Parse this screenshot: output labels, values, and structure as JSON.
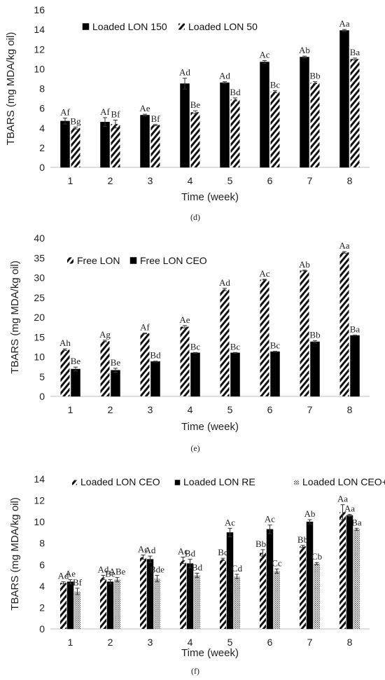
{
  "chart_data": [
    {
      "type": "bar",
      "panel_label": "(d)",
      "ylabel": "TBARS (mg MDA/kg oil)",
      "xlabel": "Time (week)",
      "ylim": [
        0,
        16
      ],
      "yticks": [
        0,
        2,
        4,
        6,
        8,
        10,
        12,
        14,
        16
      ],
      "categories": [
        "1",
        "2",
        "3",
        "4",
        "5",
        "6",
        "7",
        "8"
      ],
      "grid": false,
      "legend_position": "top-left",
      "series": [
        {
          "name": "Loaded LON 150",
          "pattern": "solid",
          "values": [
            4.7,
            4.6,
            5.3,
            8.5,
            8.6,
            10.7,
            11.2,
            13.9
          ],
          "errors": [
            0.3,
            0.45,
            0.1,
            0.55,
            0.1,
            0.15,
            0.1,
            0.1
          ],
          "labels": [
            "Af",
            "Af",
            "Ae",
            "Ad",
            "Ad",
            "Ac",
            "Ab",
            "Aa"
          ]
        },
        {
          "name": "Loaded LON 50",
          "pattern": "diagonal",
          "values": [
            4.0,
            4.4,
            4.3,
            5.6,
            6.9,
            7.7,
            8.6,
            11.0
          ],
          "errors": [
            0.1,
            0.4,
            0.05,
            0.15,
            0.15,
            0.1,
            0.1,
            0.1
          ],
          "labels": [
            "Bg",
            "Bf",
            "Bf",
            "Be",
            "Bd",
            "Bc",
            "Bb",
            "Ba"
          ]
        }
      ]
    },
    {
      "type": "bar",
      "panel_label": "(e)",
      "ylabel": "TBARS (mg MDA/kg oil)",
      "xlabel": "Time (week)",
      "ylim": [
        0,
        40
      ],
      "yticks": [
        0,
        5,
        10,
        15,
        20,
        25,
        30,
        35,
        40
      ],
      "categories": [
        "1",
        "2",
        "3",
        "4",
        "5",
        "6",
        "7",
        "8"
      ],
      "grid": false,
      "legend_position": "top-left",
      "series": [
        {
          "name": "Free LON",
          "pattern": "diagonal",
          "values": [
            11.8,
            14.0,
            15.9,
            17.6,
            27.0,
            29.5,
            31.8,
            36.4
          ],
          "errors": [
            0.2,
            0.2,
            0.1,
            0.3,
            0.3,
            0.1,
            0.1,
            0.2
          ],
          "labels": [
            "Ah",
            "Ag",
            "Af",
            "Ae",
            "Ad",
            "Ac",
            "Ab",
            "Aa"
          ]
        },
        {
          "name": "Free LON CEO",
          "pattern": "solid",
          "values": [
            6.9,
            6.6,
            8.8,
            11.0,
            11.0,
            11.3,
            13.8,
            15.4
          ],
          "errors": [
            0.5,
            0.5,
            0.1,
            0.1,
            0.1,
            0.1,
            0.3,
            0.1
          ],
          "labels": [
            "Be",
            "Be",
            "Bd",
            "Bc",
            "Bc",
            "Bc",
            "Bb",
            "Ba"
          ]
        }
      ]
    },
    {
      "type": "bar",
      "panel_label": "(f)",
      "ylabel": "TBARS (mg MDA/kg oil)",
      "xlabel": "Time (week)",
      "ylim": [
        0,
        14
      ],
      "yticks": [
        0,
        2,
        4,
        6,
        8,
        10,
        12,
        14
      ],
      "categories": [
        "1",
        "2",
        "3",
        "4",
        "5",
        "6",
        "7",
        "8"
      ],
      "grid": false,
      "legend_position": "top",
      "series": [
        {
          "name": "Loaded LON CEO",
          "pattern": "diagonal",
          "values": [
            4.3,
            4.8,
            6.7,
            6.4,
            6.5,
            7.1,
            7.7,
            10.9
          ],
          "errors": [
            0.1,
            0.2,
            0.2,
            0.3,
            0.1,
            0.3,
            0.1,
            0.7
          ],
          "labels": [
            "Ad",
            "Ad",
            "Ac",
            "Ac",
            "Bc",
            "Bbc",
            "Bb",
            "Aa"
          ]
        },
        {
          "name": "Loaded LON RE",
          "pattern": "solid",
          "values": [
            4.4,
            4.4,
            6.5,
            6.1,
            9.0,
            9.3,
            10.0,
            10.6
          ],
          "errors": [
            0.2,
            0.2,
            0.3,
            0.4,
            0.4,
            0.4,
            0.2,
            0.1
          ],
          "labels": [
            "Ae",
            "Be",
            "Ad",
            "Bd",
            "Ac",
            "Ac",
            "Ab",
            "Aa"
          ]
        },
        {
          "name": "Loaded LON CEO+RE",
          "pattern": "dotted",
          "values": [
            3.5,
            4.6,
            4.7,
            5.0,
            4.9,
            5.4,
            6.1,
            9.3
          ],
          "errors": [
            0.3,
            0.2,
            0.3,
            0.2,
            0.2,
            0.2,
            0.1,
            0.1
          ],
          "labels": [
            "Bf",
            "ABe",
            "Bde",
            "Bd",
            "Cd",
            "Cc",
            "Cb",
            "Ba"
          ]
        }
      ]
    }
  ]
}
